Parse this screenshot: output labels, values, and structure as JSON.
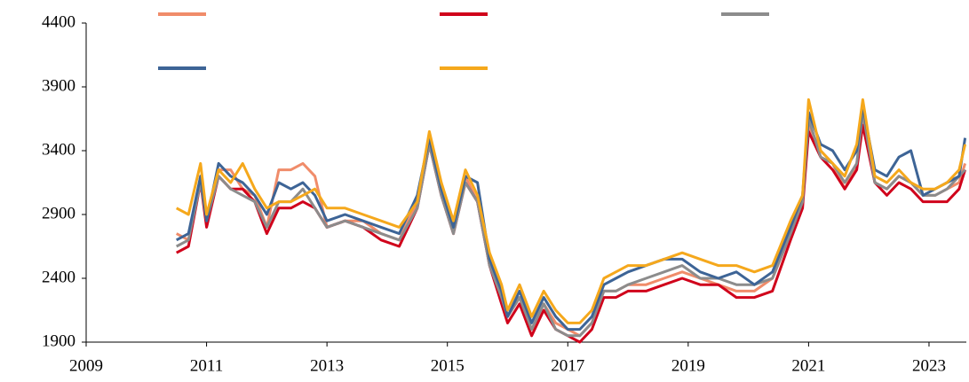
{
  "chart_data": {
    "type": "line",
    "x": [
      2010.5,
      2010.7,
      2010.9,
      2011.0,
      2011.2,
      2011.4,
      2011.6,
      2011.8,
      2012.0,
      2012.2,
      2012.4,
      2012.6,
      2012.8,
      2013.0,
      2013.3,
      2013.6,
      2013.9,
      2014.2,
      2014.5,
      2014.7,
      2014.9,
      2015.1,
      2015.3,
      2015.5,
      2015.7,
      2015.9,
      2016.0,
      2016.2,
      2016.4,
      2016.6,
      2016.8,
      2017.0,
      2017.2,
      2017.4,
      2017.6,
      2017.8,
      2018.0,
      2018.3,
      2018.6,
      2018.9,
      2019.2,
      2019.5,
      2019.8,
      2020.1,
      2020.4,
      2020.7,
      2020.9,
      2021.0,
      2021.2,
      2021.4,
      2021.6,
      2021.8,
      2021.9,
      2022.1,
      2022.3,
      2022.5,
      2022.7,
      2022.9,
      2023.1,
      2023.3,
      2023.5,
      2023.6
    ],
    "series": [
      {
        "color": "#f08c6a",
        "values": [
          2750,
          2700,
          3200,
          2850,
          3250,
          3250,
          3100,
          3050,
          2800,
          3250,
          3250,
          3300,
          3200,
          2800,
          2850,
          2850,
          2750,
          2700,
          3000,
          3500,
          3100,
          2800,
          3200,
          3000,
          2550,
          2250,
          2100,
          2250,
          2000,
          2200,
          2050,
          2000,
          1950,
          2050,
          2300,
          2300,
          2350,
          2350,
          2400,
          2450,
          2400,
          2350,
          2300,
          2300,
          2400,
          2750,
          3000,
          3600,
          3400,
          3300,
          3100,
          3300,
          3650,
          3150,
          3100,
          3200,
          3150,
          3050,
          3050,
          3100,
          3150,
          3300
        ]
      },
      {
        "color": "#d0021b",
        "values": [
          2600,
          2650,
          3150,
          2800,
          3200,
          3100,
          3100,
          3000,
          2750,
          2950,
          2950,
          3000,
          2950,
          2800,
          2850,
          2800,
          2700,
          2650,
          2950,
          3450,
          3050,
          2750,
          3150,
          3000,
          2500,
          2200,
          2050,
          2200,
          1950,
          2150,
          2000,
          1950,
          1900,
          2000,
          2250,
          2250,
          2300,
          2300,
          2350,
          2400,
          2350,
          2350,
          2250,
          2250,
          2300,
          2700,
          2950,
          3550,
          3350,
          3250,
          3100,
          3250,
          3600,
          3150,
          3050,
          3150,
          3100,
          3000,
          3000,
          3000,
          3100,
          3250
        ]
      },
      {
        "color": "#8c8c8c",
        "values": [
          2650,
          2700,
          3150,
          2850,
          3200,
          3100,
          3050,
          3000,
          2800,
          3000,
          3000,
          3100,
          2950,
          2800,
          2850,
          2800,
          2750,
          2700,
          2950,
          3450,
          3050,
          2750,
          3150,
          3000,
          2500,
          2250,
          2100,
          2250,
          2000,
          2200,
          2000,
          1950,
          1950,
          2050,
          2300,
          2300,
          2350,
          2400,
          2450,
          2500,
          2400,
          2400,
          2350,
          2350,
          2400,
          2750,
          3000,
          3650,
          3350,
          3300,
          3150,
          3300,
          3700,
          3150,
          3100,
          3200,
          3150,
          3050,
          3050,
          3100,
          3200,
          3250
        ]
      },
      {
        "color": "#3d6496",
        "values": [
          2700,
          2750,
          3200,
          2850,
          3300,
          3200,
          3150,
          3050,
          2900,
          3150,
          3100,
          3150,
          3050,
          2850,
          2900,
          2850,
          2800,
          2750,
          3050,
          3500,
          3100,
          2800,
          3200,
          3150,
          2550,
          2300,
          2100,
          2300,
          2050,
          2250,
          2100,
          2000,
          2000,
          2100,
          2350,
          2400,
          2450,
          2500,
          2550,
          2550,
          2450,
          2400,
          2450,
          2350,
          2450,
          2800,
          3050,
          3700,
          3450,
          3400,
          3250,
          3400,
          3750,
          3250,
          3200,
          3350,
          3400,
          3050,
          3100,
          3150,
          3200,
          3500
        ]
      },
      {
        "color": "#f5a81c",
        "values": [
          2950,
          2900,
          3300,
          2900,
          3250,
          3150,
          3300,
          3100,
          2950,
          3000,
          3000,
          3050,
          3100,
          2950,
          2950,
          2900,
          2850,
          2800,
          3000,
          3550,
          3150,
          2850,
          3250,
          3050,
          2600,
          2350,
          2150,
          2350,
          2100,
          2300,
          2150,
          2050,
          2050,
          2150,
          2400,
          2450,
          2500,
          2500,
          2550,
          2600,
          2550,
          2500,
          2500,
          2450,
          2500,
          2850,
          3050,
          3800,
          3400,
          3300,
          3200,
          3450,
          3800,
          3200,
          3150,
          3250,
          3150,
          3100,
          3100,
          3150,
          3250,
          3450
        ]
      }
    ],
    "xlim": [
      2009,
      2023.62
    ],
    "xticks": [
      2009,
      2011,
      2013,
      2015,
      2017,
      2019,
      2021,
      2023
    ],
    "ylim": [
      1900,
      4400
    ],
    "yticks": [
      1900,
      2400,
      2900,
      3400,
      3900,
      4400
    ]
  }
}
